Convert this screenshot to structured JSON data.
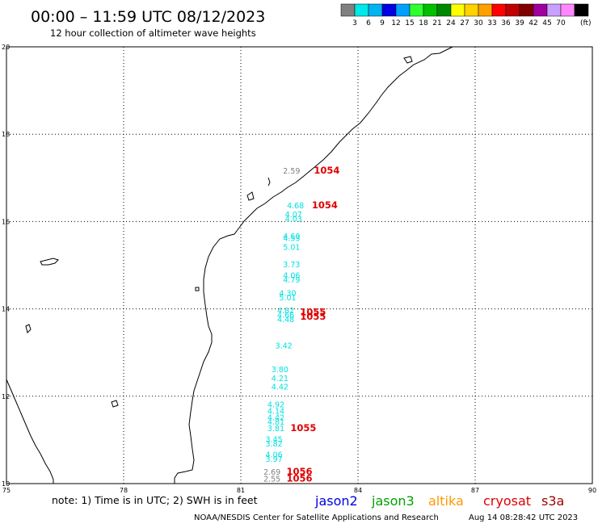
{
  "header": {
    "title": "00:00 – 11:59 UTC 08/12/2023",
    "subtitle": "12 hour collection of altimeter wave heights"
  },
  "legend": {
    "swatches": [
      {
        "color": "#808080",
        "label": ""
      },
      {
        "color": "#00e8e8",
        "label": "3"
      },
      {
        "color": "#00b4f0",
        "label": "6"
      },
      {
        "color": "#0000e0",
        "label": "9"
      },
      {
        "color": "#00a0ff",
        "label": "12"
      },
      {
        "color": "#30ff30",
        "label": "15"
      },
      {
        "color": "#00c000",
        "label": "18"
      },
      {
        "color": "#008800",
        "label": "21"
      },
      {
        "color": "#ffff00",
        "label": "24"
      },
      {
        "color": "#ffd200",
        "label": "27"
      },
      {
        "color": "#ffa000",
        "label": "30"
      },
      {
        "color": "#ff0000",
        "label": "33"
      },
      {
        "color": "#c00000",
        "label": "36"
      },
      {
        "color": "#800000",
        "label": "39"
      },
      {
        "color": "#a000a0",
        "label": "42"
      },
      {
        "color": "#c8a0ff",
        "label": "45"
      },
      {
        "color": "#ff88ff",
        "label": "70"
      },
      {
        "color": "#000000",
        "label": ""
      }
    ],
    "unit": "(ft)"
  },
  "map": {
    "lon_range": [
      75,
      90
    ],
    "lat_range": [
      10,
      20
    ],
    "x_ticks": [
      "75",
      "78",
      "81",
      "84",
      "87",
      "90"
    ],
    "y_ticks": [
      "10",
      "12",
      "14",
      "16",
      "18",
      "20"
    ],
    "grid": true,
    "observations": [
      {
        "lon": 82.3,
        "lat": 17.1,
        "value": "2.59",
        "satellite": "other",
        "color": "#808080"
      },
      {
        "lon": 82.4,
        "lat": 16.3,
        "value": "4.68",
        "satellite": "altimeter",
        "color": "#00e0e0"
      },
      {
        "lon": 82.35,
        "lat": 16.1,
        "value": "4.07",
        "satellite": "altimeter",
        "color": "#00e0e0"
      },
      {
        "lon": 82.35,
        "lat": 16.0,
        "value": "4.03",
        "satellite": "altimeter",
        "color": "#00e0e0"
      },
      {
        "lon": 82.3,
        "lat": 15.6,
        "value": "4.60",
        "satellite": "altimeter",
        "color": "#00e0e0"
      },
      {
        "lon": 82.3,
        "lat": 15.55,
        "value": "4.53",
        "satellite": "altimeter",
        "color": "#00e0e0"
      },
      {
        "lon": 82.3,
        "lat": 15.35,
        "value": "5.01",
        "satellite": "altimeter",
        "color": "#00e0e0"
      },
      {
        "lon": 82.3,
        "lat": 14.95,
        "value": "3.73",
        "satellite": "altimeter",
        "color": "#00e0e0"
      },
      {
        "lon": 82.3,
        "lat": 14.7,
        "value": "4.06",
        "satellite": "altimeter",
        "color": "#00e0e0"
      },
      {
        "lon": 82.3,
        "lat": 14.6,
        "value": "4.79",
        "satellite": "altimeter",
        "color": "#00e0e0"
      },
      {
        "lon": 82.2,
        "lat": 14.3,
        "value": "4.30",
        "satellite": "altimeter",
        "color": "#00e0e0"
      },
      {
        "lon": 82.2,
        "lat": 14.2,
        "value": "5.01",
        "satellite": "altimeter",
        "color": "#00e0e0"
      },
      {
        "lon": 82.15,
        "lat": 13.9,
        "value": "4.82",
        "satellite": "altimeter",
        "color": "#00e0e0"
      },
      {
        "lon": 82.15,
        "lat": 13.8,
        "value": "4.66",
        "satellite": "altimeter",
        "color": "#00e0e0"
      },
      {
        "lon": 82.15,
        "lat": 13.7,
        "value": "4.48",
        "satellite": "altimeter",
        "color": "#00e0e0"
      },
      {
        "lon": 82.1,
        "lat": 13.1,
        "value": "3.42",
        "satellite": "altimeter",
        "color": "#00e0e0"
      },
      {
        "lon": 82.0,
        "lat": 12.55,
        "value": "3.80",
        "satellite": "altimeter",
        "color": "#00e0e0"
      },
      {
        "lon": 82.0,
        "lat": 12.35,
        "value": "4.21",
        "satellite": "altimeter",
        "color": "#00e0e0"
      },
      {
        "lon": 82.0,
        "lat": 12.15,
        "value": "4.42",
        "satellite": "altimeter",
        "color": "#00e0e0"
      },
      {
        "lon": 81.9,
        "lat": 11.75,
        "value": "4.92",
        "satellite": "altimeter",
        "color": "#00e0e0"
      },
      {
        "lon": 81.9,
        "lat": 11.6,
        "value": "4.14",
        "satellite": "altimeter",
        "color": "#00e0e0"
      },
      {
        "lon": 81.9,
        "lat": 11.45,
        "value": "4.42",
        "satellite": "altimeter",
        "color": "#00e0e0"
      },
      {
        "lon": 81.9,
        "lat": 11.35,
        "value": "4.81",
        "satellite": "altimeter",
        "color": "#00e0e0"
      },
      {
        "lon": 81.9,
        "lat": 11.2,
        "value": "3.81",
        "satellite": "altimeter",
        "color": "#00e0e0"
      },
      {
        "lon": 81.85,
        "lat": 10.95,
        "value": "3.45",
        "satellite": "altimeter",
        "color": "#00e0e0"
      },
      {
        "lon": 81.85,
        "lat": 10.85,
        "value": "3.82",
        "satellite": "altimeter",
        "color": "#00e0e0"
      },
      {
        "lon": 81.85,
        "lat": 10.6,
        "value": "4.06",
        "satellite": "altimeter",
        "color": "#00e0e0"
      },
      {
        "lon": 81.85,
        "lat": 10.5,
        "value": "3.97",
        "satellite": "altimeter",
        "color": "#00e0e0"
      },
      {
        "lon": 81.8,
        "lat": 10.2,
        "value": "2.69",
        "satellite": "other",
        "color": "#808080"
      },
      {
        "lon": 81.8,
        "lat": 10.05,
        "value": "2.55",
        "satellite": "other",
        "color": "#808080"
      }
    ],
    "pass_labels": [
      {
        "lon": 83.2,
        "lat": 17.1,
        "text": "1054",
        "color": "#e00000"
      },
      {
        "lon": 83.15,
        "lat": 16.3,
        "text": "1054",
        "color": "#e00000"
      },
      {
        "lon": 82.85,
        "lat": 13.85,
        "text": "1055",
        "color": "#e00000"
      },
      {
        "lon": 82.85,
        "lat": 13.75,
        "text": "1055",
        "color": "#e00000"
      },
      {
        "lon": 82.6,
        "lat": 11.2,
        "text": "1055",
        "color": "#e00000"
      },
      {
        "lon": 82.5,
        "lat": 10.2,
        "text": "1056",
        "color": "#e00000"
      },
      {
        "lon": 82.5,
        "lat": 10.05,
        "text": "1056",
        "color": "#e00000"
      }
    ]
  },
  "footer": {
    "note": "note: 1) Time is in UTC; 2) SWH is in feet",
    "satellites": [
      {
        "name": "jason2",
        "color": "#0000e0"
      },
      {
        "name": "jason3",
        "color": "#00a000"
      },
      {
        "name": "altika",
        "color": "#ff9900"
      },
      {
        "name": "cryosat",
        "color": "#e00000"
      },
      {
        "name": "s3a",
        "color": "#990000"
      }
    ],
    "credit": "NOAA/NESDIS Center for Satellite Applications and Research",
    "timestamp": "Aug 14 08:28:42 UTC 2023"
  }
}
